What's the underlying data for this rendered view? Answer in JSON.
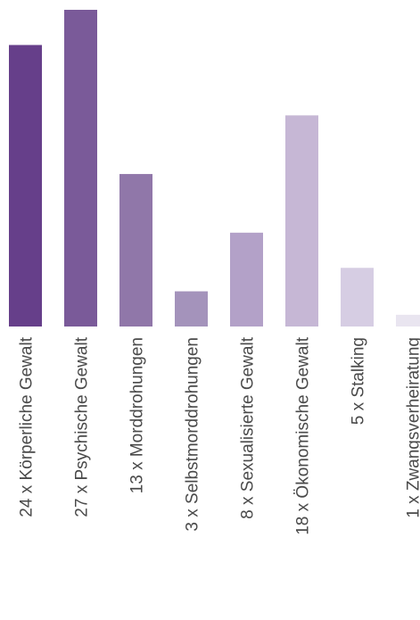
{
  "chart_data": {
    "type": "bar",
    "orientation": "vertical",
    "title": "",
    "xlabel": "",
    "ylabel": "",
    "ylim": [
      0,
      27
    ],
    "grid": false,
    "legend": "none",
    "categories": [
      "24 x Körperliche Gewalt",
      "27 x Psychische Gewalt",
      "13 x Morddrohungen",
      "3 x Selbstmorddrohungen",
      "8 x Sexualisierte Gewalt",
      "18 x Ökonomische Gewalt",
      "5 x Stalking",
      "1 x Zwangsverheiratung"
    ],
    "values": [
      24,
      27,
      13,
      3,
      8,
      18,
      5,
      1
    ],
    "colors": [
      "#663f8a",
      "#7a5a99",
      "#9077a9",
      "#a493bb",
      "#b3a1c8",
      "#c6b7d5",
      "#d6cde3",
      "#e9e5f0"
    ]
  }
}
